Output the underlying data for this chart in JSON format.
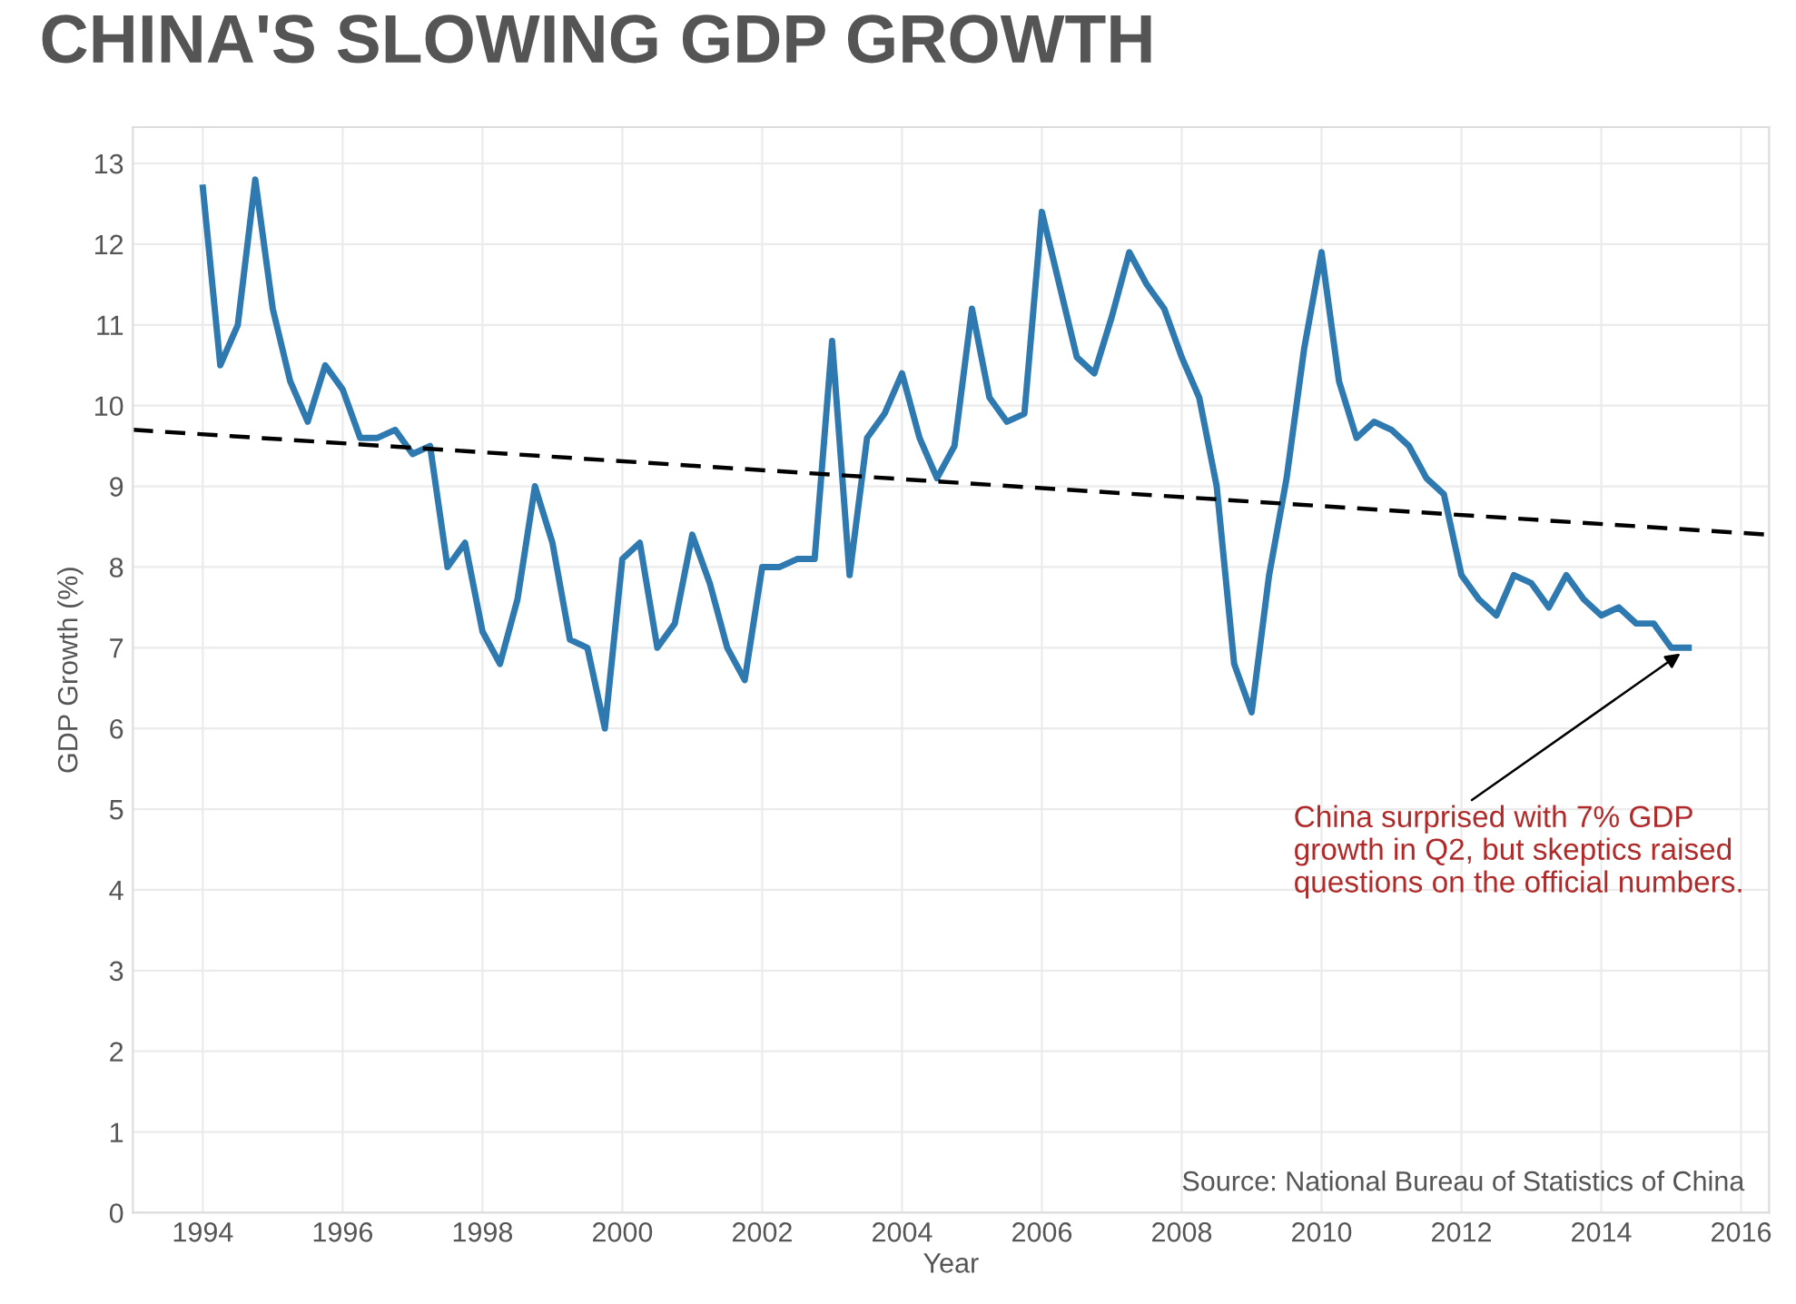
{
  "chart_data": {
    "type": "line",
    "title": "CHINA'S SLOWING GDP GROWTH",
    "xlabel": "Year",
    "ylabel": "GDP Growth (%)",
    "series": [
      {
        "color": "#2e79b0",
        "line_style": "solid",
        "x": [
          1994,
          1994.25,
          1994.5,
          1994.75,
          1995,
          1995.25,
          1995.5,
          1995.75,
          1996,
          1996.25,
          1996.5,
          1996.75,
          1997,
          1997.25,
          1997.5,
          1997.75,
          1998,
          1998.25,
          1998.5,
          1998.75,
          1999,
          1999.25,
          1999.5,
          1999.75,
          2000,
          2000.25,
          2000.5,
          2000.75,
          2001,
          2001.25,
          2001.5,
          2001.75,
          2002,
          2002.25,
          2002.5,
          2002.75,
          2003,
          2003.25,
          2003.5,
          2003.75,
          2004,
          2004.25,
          2004.5,
          2004.75,
          2005,
          2005.25,
          2005.5,
          2005.75,
          2006,
          2006.25,
          2006.5,
          2006.75,
          2007,
          2007.25,
          2007.5,
          2007.75,
          2008,
          2008.25,
          2008.5,
          2008.75,
          2009,
          2009.25,
          2009.5,
          2009.75,
          2010,
          2010.25,
          2010.5,
          2010.75,
          2011,
          2011.25,
          2011.5,
          2011.75,
          2012,
          2012.25,
          2012.5,
          2012.75,
          2013,
          2013.25,
          2013.5,
          2013.75,
          2014,
          2014.25,
          2014.5,
          2014.75,
          2015,
          2015.25
        ],
        "values": [
          12.7,
          10.5,
          11.0,
          12.8,
          11.2,
          10.3,
          9.8,
          10.5,
          10.2,
          9.6,
          9.6,
          9.7,
          9.4,
          9.5,
          8.0,
          8.3,
          7.2,
          6.8,
          7.6,
          9.0,
          8.3,
          7.1,
          7.0,
          6.0,
          8.1,
          8.3,
          7.0,
          7.3,
          8.4,
          7.8,
          7.0,
          6.6,
          8.0,
          8.0,
          8.1,
          8.1,
          10.8,
          7.9,
          9.6,
          9.9,
          10.4,
          9.6,
          9.1,
          9.5,
          11.2,
          10.1,
          9.8,
          9.9,
          12.4,
          11.5,
          10.6,
          10.4,
          11.1,
          11.9,
          11.5,
          11.2,
          10.6,
          10.1,
          9.0,
          6.8,
          6.2,
          7.9,
          9.1,
          10.7,
          11.9,
          10.3,
          9.6,
          9.8,
          9.7,
          9.5,
          9.1,
          8.9,
          7.9,
          7.6,
          7.4,
          7.9,
          7.8,
          7.5,
          7.9,
          7.6,
          7.4,
          7.5,
          7.3,
          7.3,
          7.0,
          7.0
        ]
      },
      {
        "color": "#000000",
        "line_style": "dashed",
        "x": [
          1993,
          2016.4
        ],
        "values": [
          9.7,
          8.4
        ]
      }
    ],
    "xlim": [
      1993,
      2016.4
    ],
    "xticks": [
      1994,
      1996,
      1998,
      2000,
      2002,
      2004,
      2006,
      2008,
      2010,
      2012,
      2014,
      2016
    ],
    "ylim": [
      0,
      13.45
    ],
    "yticks": [
      0,
      1,
      2,
      3,
      4,
      5,
      6,
      7,
      8,
      9,
      10,
      11,
      12,
      13
    ],
    "grid": true,
    "legend": false,
    "marker": "none",
    "annotations": [
      {
        "text": "China surprised with 7% GDP\ngrowth in Q2, but skeptics raised\nquestions on the official numbers.",
        "x": 2015.25,
        "y": 7.0
      },
      "Source: National Bureau of Statistics of China"
    ]
  }
}
